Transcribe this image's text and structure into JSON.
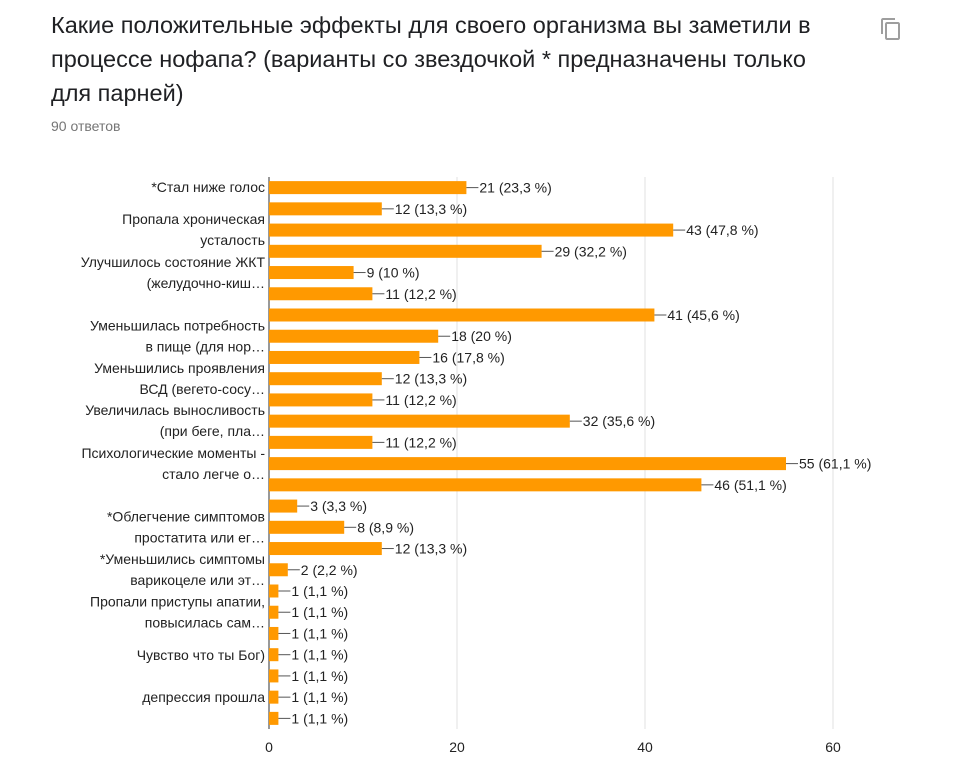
{
  "card": {
    "title": "Какие положительные эффекты для своего организма вы заметили в процессе нофапа? (варианты со звездочкой * предназначены только для парней)",
    "responses": "90 ответов",
    "copy_icon": "copy-icon"
  },
  "colors": {
    "bar": "#ff9900",
    "grid": "#e0e0e0",
    "text": "#222222",
    "axis": "#333333"
  },
  "chart_data": {
    "type": "bar",
    "orientation": "horizontal",
    "title": "",
    "xlabel": "",
    "ylabel": "",
    "xlim": [
      0,
      60
    ],
    "xticks": [
      0,
      20,
      40,
      60
    ],
    "categories": [
      "*Стал ниже голос",
      "",
      "Пропала хроническая усталость",
      "",
      "Улучшилось состояние ЖКТ (желудочно-киш…",
      "",
      "",
      "Уменьшилась потребность в пище (для нор…",
      "",
      "Уменьшились проявления ВСД (вегето-сосу…",
      "",
      "Увеличилась выносливость (при беге, пла…",
      "",
      "Психологические моменты - стало легче о…",
      "",
      "",
      "*Облегчение симптомов простатита или ег…",
      "",
      "*Уменьшились симптомы варикоцеле или эт…",
      "",
      "Пропали приступы апатии, повысилась сам…",
      "",
      "Чувство что ты Бог)",
      "",
      "депрессия прошла",
      ""
    ],
    "values": [
      21,
      12,
      43,
      29,
      9,
      11,
      41,
      18,
      16,
      12,
      11,
      32,
      11,
      55,
      46,
      3,
      8,
      12,
      2,
      1,
      1,
      1,
      1,
      1,
      1,
      1
    ],
    "data_labels": [
      "21 (23,3 %)",
      "12 (13,3 %)",
      "43 (47,8 %)",
      "29 (32,2 %)",
      "9 (10 %)",
      "11 (12,2 %)",
      "41 (45,6 %)",
      "18 (20 %)",
      "16 (17,8 %)",
      "12 (13,3 %)",
      "11 (12,2 %)",
      "32 (35,6 %)",
      "11 (12,2 %)",
      "55 (61,1 %)",
      "46 (51,1 %)",
      "3 (3,3 %)",
      "8 (8,9 %)",
      "12 (13,3 %)",
      "2 (2,2 %)",
      "1 (1,1 %)",
      "1 (1,1 %)",
      "1 (1,1 %)",
      "1 (1,1 %)",
      "1 (1,1 %)",
      "1 (1,1 %)",
      "1 (1,1 %)"
    ],
    "ylabels_display": [
      {
        "lines": [
          "*Стал ниже голос"
        ]
      },
      {
        "lines": [
          "Пропала хроническая",
          "усталость"
        ]
      },
      {
        "lines": [
          "Улучшилось состояние ЖКТ",
          "(желудочно-киш…"
        ]
      },
      {
        "lines": [
          "Уменьшилась потребность",
          "в пище (для нор…"
        ]
      },
      {
        "lines": [
          "Уменьшились проявления",
          "ВСД (вегето-сосу…"
        ]
      },
      {
        "lines": [
          "Увеличилась выносливость",
          "(при беге, пла…"
        ]
      },
      {
        "lines": [
          "Психологические моменты -",
          "стало легче о…"
        ]
      },
      {
        "lines": [
          "*Облегчение симптомов",
          "простатита или ег…"
        ]
      },
      {
        "lines": [
          "*Уменьшились симптомы",
          "варикоцеле или эт…"
        ]
      },
      {
        "lines": [
          "Пропали приступы апатии,",
          "повысилась сам…"
        ]
      },
      {
        "lines": [
          "Чувство что ты Бог)"
        ]
      },
      {
        "lines": [
          "депрессия прошла"
        ]
      }
    ]
  }
}
